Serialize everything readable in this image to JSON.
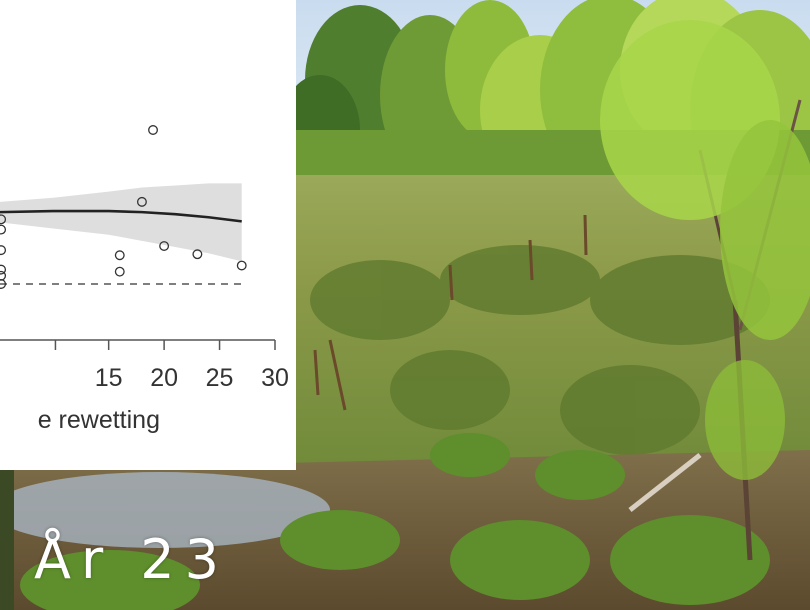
{
  "overlay": {
    "year_label": "År 23"
  },
  "colors": {
    "fit_line": "#222222",
    "band": "#dedede",
    "points": "#333333",
    "axis": "#555555"
  },
  "chart_data": {
    "type": "scatter",
    "xlabel": "e rewetting",
    "ylabel": "",
    "xlim": [
      5.2,
      30
    ],
    "ylim": [
      0,
      1
    ],
    "xticks": [
      15,
      20,
      25,
      30
    ],
    "grid": false,
    "points": [
      {
        "x": 5.3,
        "y": 0.565
      },
      {
        "x": 5.3,
        "y": 0.515
      },
      {
        "x": 5.3,
        "y": 0.415
      },
      {
        "x": 5.3,
        "y": 0.32
      },
      {
        "x": 5.3,
        "y": 0.29
      },
      {
        "x": 5.3,
        "y": 0.25
      },
      {
        "x": 16,
        "y": 0.39
      },
      {
        "x": 16,
        "y": 0.31
      },
      {
        "x": 18,
        "y": 0.65
      },
      {
        "x": 19,
        "y": 1.0
      },
      {
        "x": 20,
        "y": 0.435
      },
      {
        "x": 23,
        "y": 0.395
      },
      {
        "x": 27,
        "y": 0.34
      }
    ],
    "fit": {
      "x": [
        5.2,
        10,
        15,
        18,
        21,
        24,
        27
      ],
      "y": [
        0.6,
        0.605,
        0.605,
        0.6,
        0.59,
        0.575,
        0.555
      ]
    },
    "band": {
      "x": [
        5.2,
        10,
        15,
        18,
        21,
        24,
        27
      ],
      "upper": [
        0.65,
        0.67,
        0.7,
        0.72,
        0.73,
        0.74,
        0.74
      ],
      "lower": [
        0.55,
        0.52,
        0.49,
        0.46,
        0.43,
        0.4,
        0.36
      ]
    },
    "baseline": 0.25
  }
}
